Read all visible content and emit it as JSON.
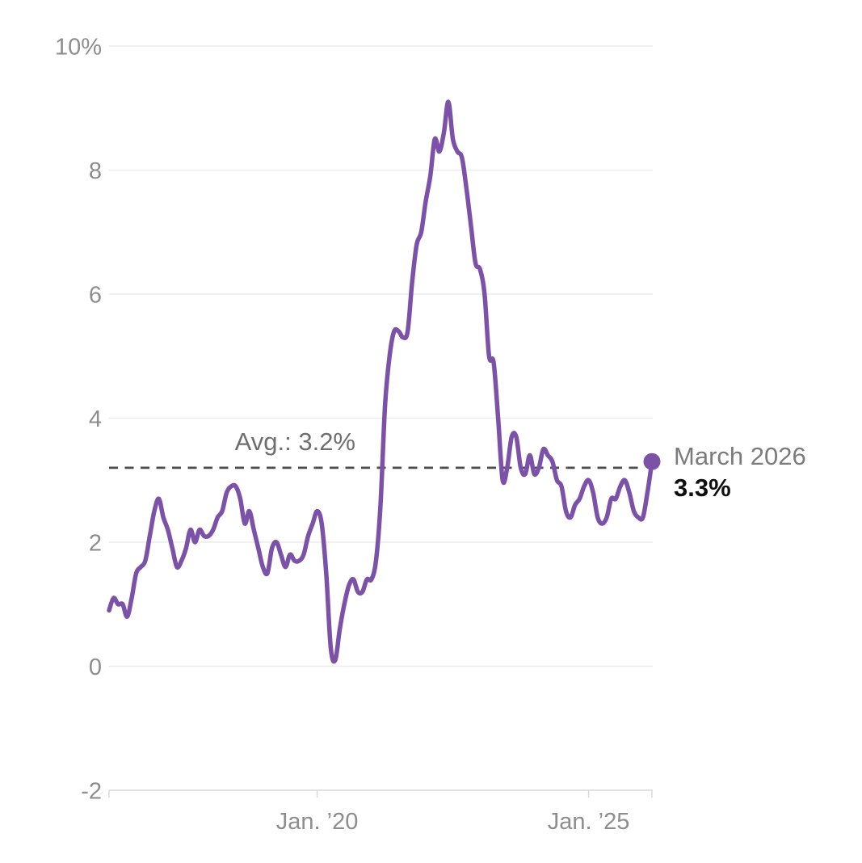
{
  "page": {
    "background": "#ffffff"
  },
  "chart_data": {
    "type": "line",
    "title": "",
    "line_color": "#7c52a9",
    "axis_text_color": "#8d8d8d",
    "gridline_color": "#ececec",
    "axis_line_color": "#d7d7d7",
    "ylim": [
      -2,
      10
    ],
    "grid": true,
    "legend_position": "none",
    "y_ticks": [
      {
        "value": 10,
        "label": "10%"
      },
      {
        "value": 8,
        "label": "8"
      },
      {
        "value": 6,
        "label": "6"
      },
      {
        "value": 4,
        "label": "4"
      },
      {
        "value": 2,
        "label": "2"
      },
      {
        "value": 0,
        "label": "0"
      },
      {
        "value": -2,
        "label": "-2"
      }
    ],
    "x_ticks": [
      {
        "month": "2020-01",
        "label": "Jan. ’20"
      },
      {
        "month": "2025-01",
        "label": "Jan. ’25"
      }
    ],
    "avg_line": {
      "value": 3.2,
      "label": "Avg.: 3.2%",
      "style": "dashed",
      "color": "#4b4b4b"
    },
    "endpoint": {
      "month": "2026-03",
      "value": 3.3,
      "date_label": "March 2026",
      "value_label": "3.3%",
      "marker": "dot"
    },
    "x": [
      "2016-03",
      "2016-04",
      "2016-05",
      "2016-06",
      "2016-07",
      "2016-08",
      "2016-09",
      "2016-10",
      "2016-11",
      "2016-12",
      "2017-01",
      "2017-02",
      "2017-03",
      "2017-04",
      "2017-05",
      "2017-06",
      "2017-07",
      "2017-08",
      "2017-09",
      "2017-10",
      "2017-11",
      "2017-12",
      "2018-01",
      "2018-02",
      "2018-03",
      "2018-04",
      "2018-05",
      "2018-06",
      "2018-07",
      "2018-08",
      "2018-09",
      "2018-10",
      "2018-11",
      "2018-12",
      "2019-01",
      "2019-02",
      "2019-03",
      "2019-04",
      "2019-05",
      "2019-06",
      "2019-07",
      "2019-08",
      "2019-09",
      "2019-10",
      "2019-11",
      "2019-12",
      "2020-01",
      "2020-02",
      "2020-03",
      "2020-04",
      "2020-05",
      "2020-06",
      "2020-07",
      "2020-08",
      "2020-09",
      "2020-10",
      "2020-11",
      "2020-12",
      "2021-01",
      "2021-02",
      "2021-03",
      "2021-04",
      "2021-05",
      "2021-06",
      "2021-07",
      "2021-08",
      "2021-09",
      "2021-10",
      "2021-11",
      "2021-12",
      "2022-01",
      "2022-02",
      "2022-03",
      "2022-04",
      "2022-05",
      "2022-06",
      "2022-07",
      "2022-08",
      "2022-09",
      "2022-10",
      "2022-11",
      "2022-12",
      "2023-01",
      "2023-02",
      "2023-03",
      "2023-04",
      "2023-05",
      "2023-06",
      "2023-07",
      "2023-08",
      "2023-09",
      "2023-10",
      "2023-11",
      "2023-12",
      "2024-01",
      "2024-02",
      "2024-03",
      "2024-04",
      "2024-05",
      "2024-06",
      "2024-07",
      "2024-08",
      "2024-09",
      "2024-10",
      "2024-11",
      "2024-12",
      "2025-01",
      "2025-02",
      "2025-03",
      "2025-04",
      "2025-05",
      "2025-06",
      "2025-07",
      "2025-08",
      "2025-09",
      "2025-10",
      "2025-11",
      "2025-12",
      "2026-01",
      "2026-02",
      "2026-03"
    ],
    "values": [
      0.9,
      1.1,
      1.0,
      1.0,
      0.8,
      1.1,
      1.5,
      1.6,
      1.7,
      2.1,
      2.5,
      2.7,
      2.4,
      2.2,
      1.9,
      1.6,
      1.7,
      1.9,
      2.2,
      2.0,
      2.2,
      2.1,
      2.1,
      2.2,
      2.4,
      2.5,
      2.8,
      2.9,
      2.9,
      2.7,
      2.3,
      2.5,
      2.2,
      1.9,
      1.6,
      1.5,
      1.9,
      2.0,
      1.8,
      1.6,
      1.8,
      1.7,
      1.7,
      1.8,
      2.1,
      2.3,
      2.5,
      2.3,
      1.5,
      0.3,
      0.1,
      0.6,
      1.0,
      1.3,
      1.4,
      1.2,
      1.2,
      1.4,
      1.4,
      1.7,
      2.6,
      4.2,
      5.0,
      5.4,
      5.4,
      5.3,
      5.4,
      6.2,
      6.8,
      7.0,
      7.5,
      7.9,
      8.5,
      8.3,
      8.6,
      9.1,
      8.5,
      8.3,
      8.2,
      7.7,
      7.1,
      6.5,
      6.4,
      6.0,
      5.0,
      4.9,
      4.0,
      3.0,
      3.2,
      3.7,
      3.7,
      3.2,
      3.1,
      3.4,
      3.1,
      3.2,
      3.5,
      3.4,
      3.3,
      3.0,
      2.9,
      2.5,
      2.4,
      2.6,
      2.7,
      2.9,
      3.0,
      2.8,
      2.4,
      2.3,
      2.4,
      2.7,
      2.7,
      2.9,
      3.0,
      2.8,
      2.5,
      2.4,
      2.4,
      2.8,
      3.3
    ]
  }
}
